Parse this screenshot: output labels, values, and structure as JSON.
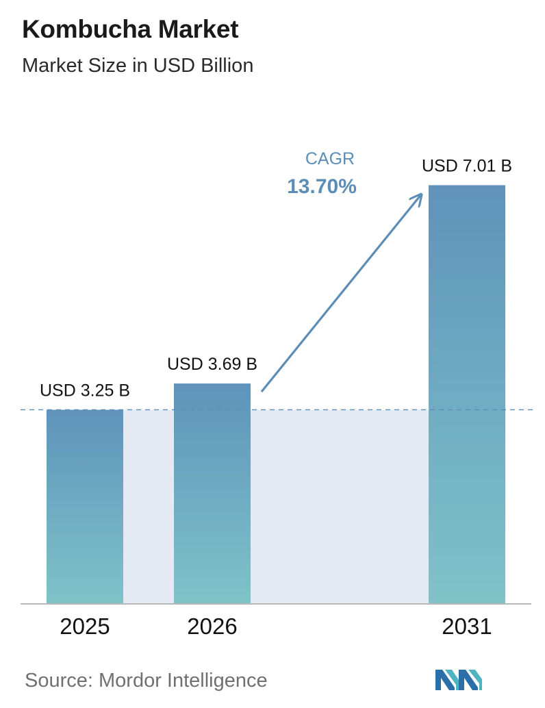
{
  "header": {
    "title": "Kombucha Market",
    "subtitle": "Market Size in USD Billion"
  },
  "chart_data": {
    "type": "bar",
    "categories": [
      "2025",
      "2026",
      "2031"
    ],
    "values": [
      3.25,
      3.69,
      7.01
    ],
    "value_labels": [
      "USD 3.25 B",
      "USD 3.69 B",
      "USD 7.01 B"
    ],
    "annotation": {
      "label": "CAGR",
      "value": "13.70%"
    },
    "ylim": [
      0,
      7.6
    ],
    "grid": false,
    "reference_line_value": 3.25
  },
  "colors": {
    "bar_top": "#5f93bb",
    "bar_bottom": "#7fc3c8",
    "shade": "#e3eaf3",
    "arrow": "#5b8db6",
    "axis": "#b8b8b8",
    "label_text": "#111111"
  },
  "footer": {
    "source": "Source:  Mordor Intelligence",
    "logo_icon": "mordor-intelligence-logo-icon"
  }
}
